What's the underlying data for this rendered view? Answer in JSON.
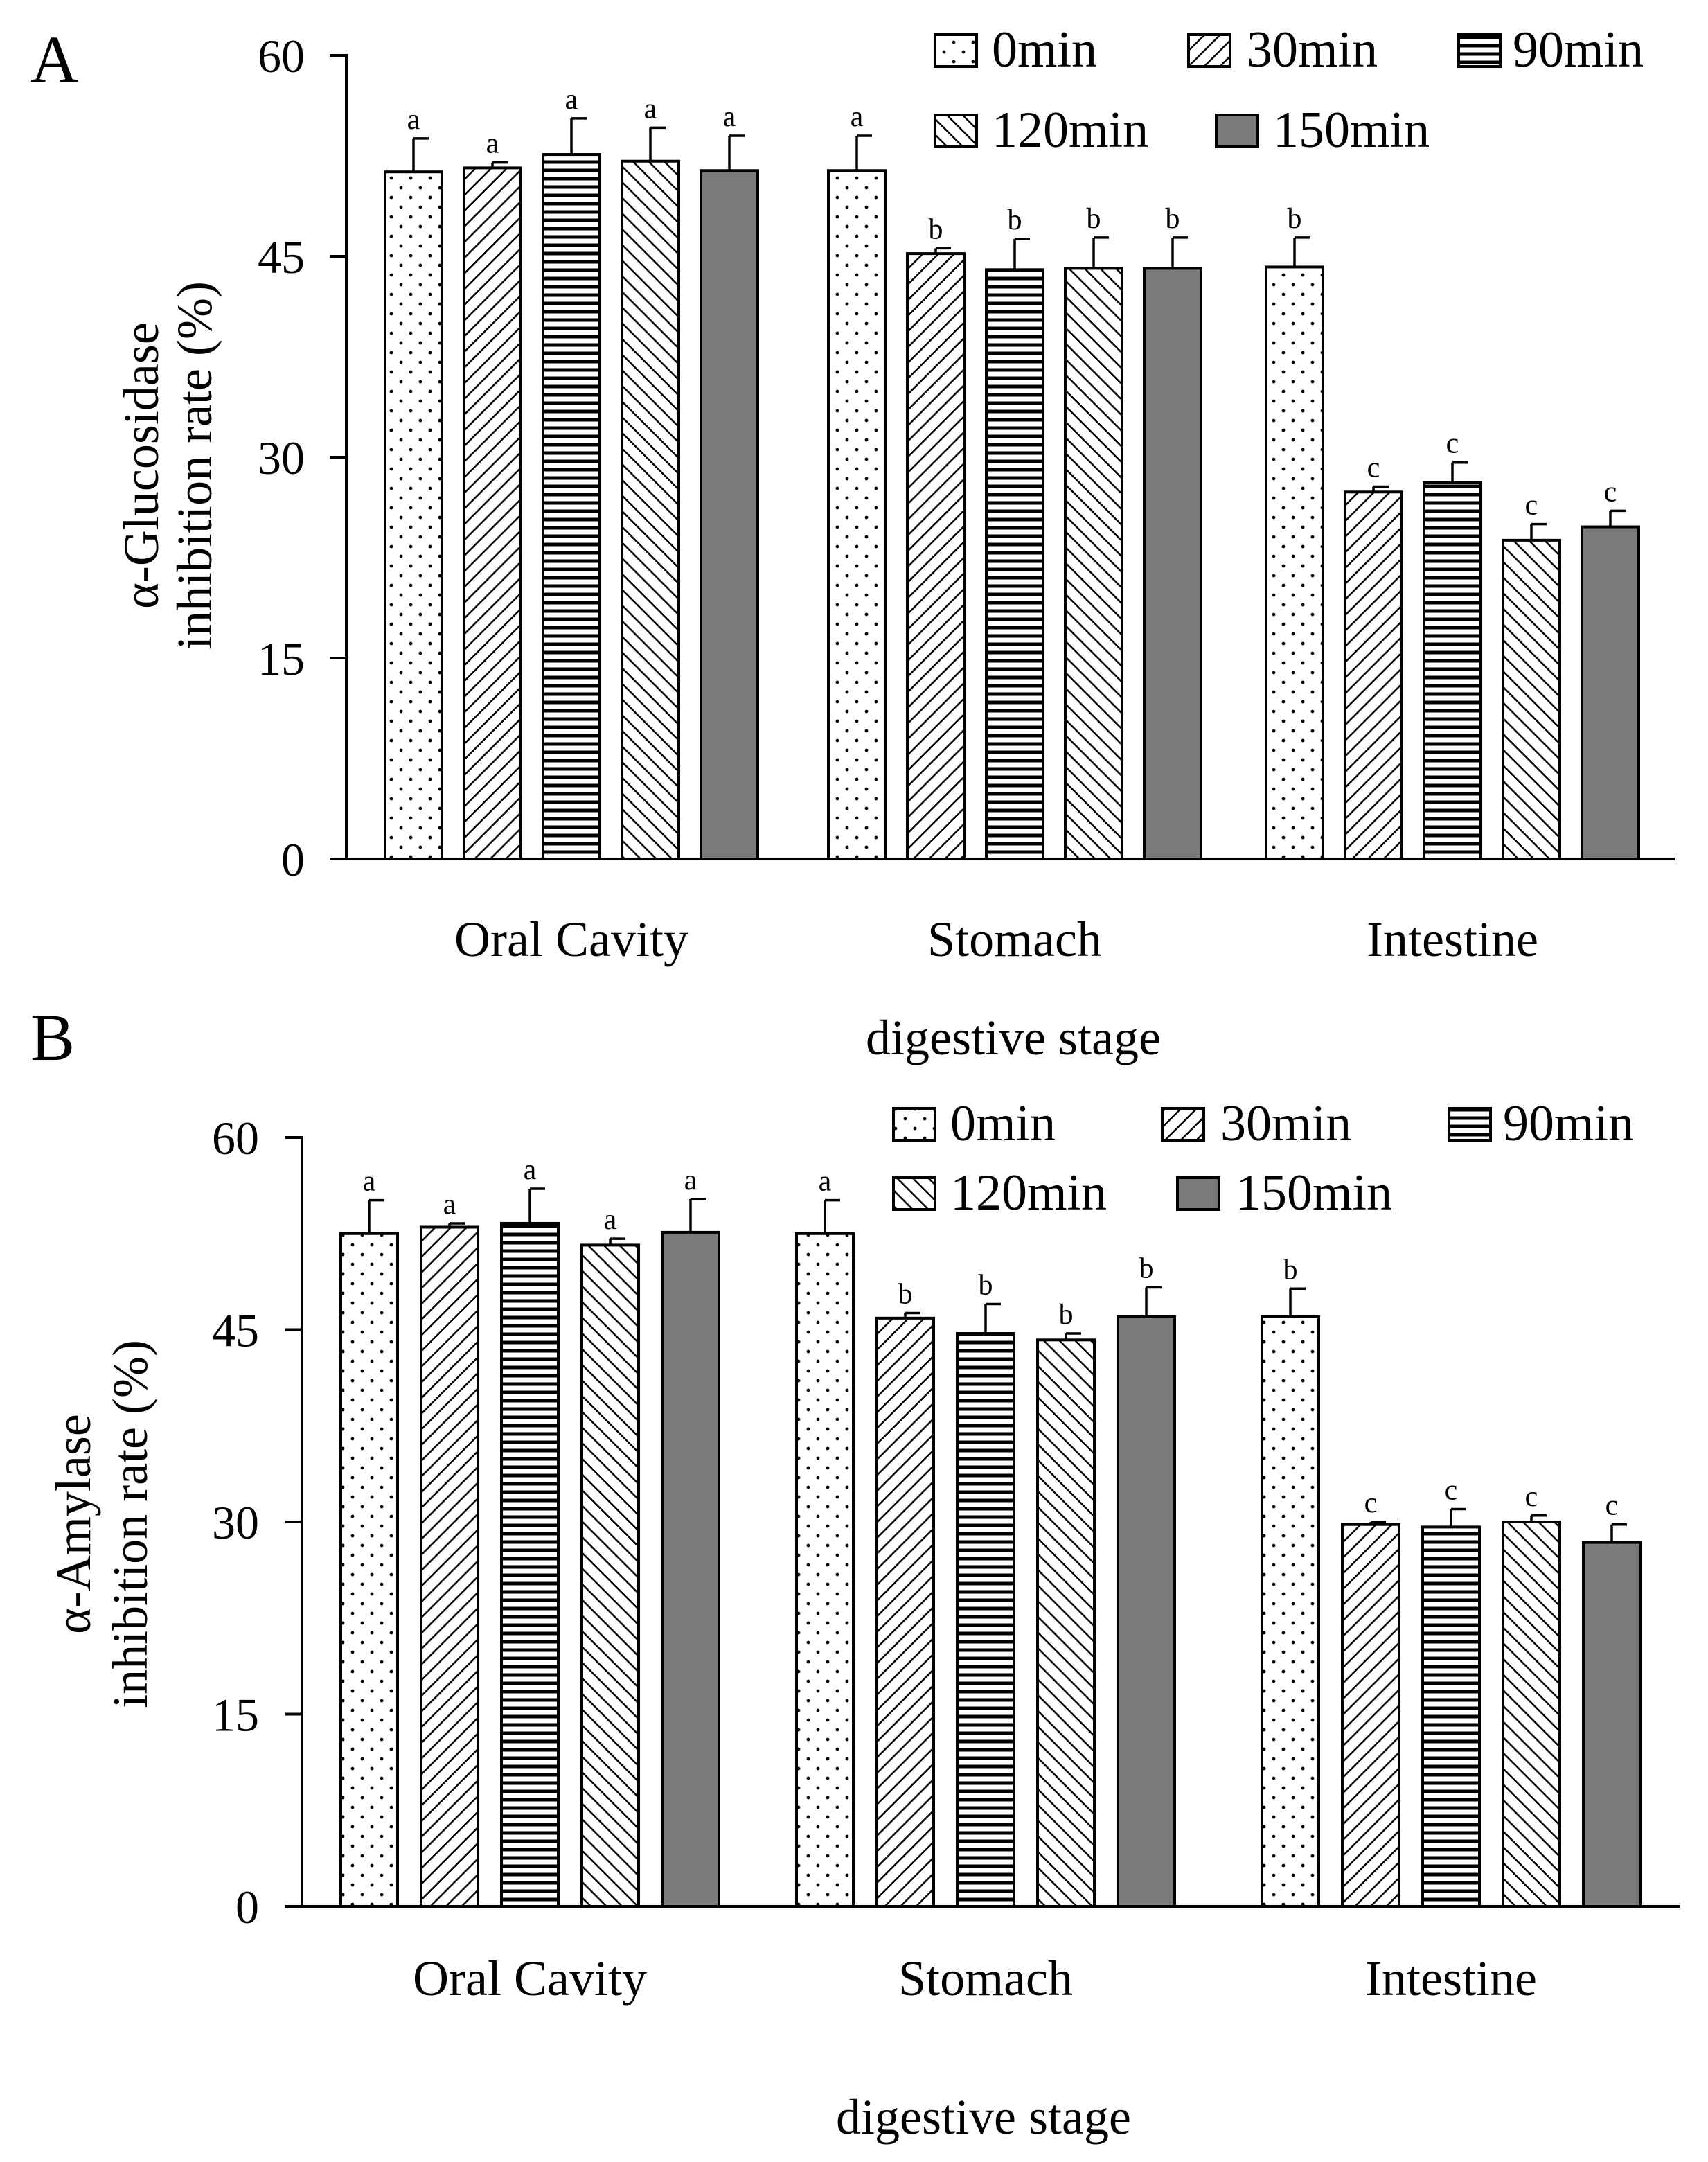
{
  "figure_labels": {
    "a": "A",
    "b": "B"
  },
  "legend": [
    {
      "key": "0min",
      "label": "0min",
      "pattern": "dots"
    },
    {
      "key": "30min",
      "label": "30min",
      "pattern": "diag-up"
    },
    {
      "key": "90min",
      "label": "90min",
      "pattern": "horizontal"
    },
    {
      "key": "120min",
      "label": "120min",
      "pattern": "diag-down"
    },
    {
      "key": "150min",
      "label": "150min",
      "pattern": "solid-gray"
    }
  ],
  "colors": {
    "solid": "#7a7a7a",
    "axis": "#000000",
    "background": "#ffffff"
  },
  "chart_data": [
    {
      "type": "bar",
      "panel": "A",
      "title": "",
      "xlabel": "digestive stage",
      "ylabel_line1": "α-Glucosidase",
      "ylabel_line2": "inhibition rate (%)",
      "ylim": [
        0,
        60
      ],
      "yticks": [
        0,
        15,
        30,
        45,
        60
      ],
      "categories": [
        "Oral Cavity",
        "Stomach",
        "Intestine"
      ],
      "series": [
        {
          "name": "0min",
          "values": [
            51.3,
            51.4,
            44.2
          ],
          "errors": [
            2.5,
            2.6,
            2.2
          ],
          "labels": [
            "a",
            "a",
            "b"
          ]
        },
        {
          "name": "30min",
          "values": [
            51.6,
            45.2,
            27.4
          ],
          "errors": [
            0.4,
            0.4,
            0.4
          ],
          "labels": [
            "a",
            "b",
            "c"
          ]
        },
        {
          "name": "90min",
          "values": [
            52.6,
            44.0,
            28.1
          ],
          "errors": [
            2.7,
            2.3,
            1.5
          ],
          "labels": [
            "a",
            "b",
            "c"
          ]
        },
        {
          "name": "120min",
          "values": [
            52.1,
            44.1,
            23.8
          ],
          "errors": [
            2.5,
            2.3,
            1.2
          ],
          "labels": [
            "a",
            "b",
            "c"
          ]
        },
        {
          "name": "150min",
          "values": [
            51.4,
            44.1,
            24.8
          ],
          "errors": [
            2.6,
            2.3,
            1.2
          ],
          "labels": [
            "a",
            "b",
            "c"
          ]
        }
      ]
    },
    {
      "type": "bar",
      "panel": "B",
      "title": "",
      "xlabel": "digestive stage",
      "ylabel_line1": "α-Amylase",
      "ylabel_line2": "inhibition rate (%)",
      "ylim": [
        0,
        60
      ],
      "yticks": [
        0,
        15,
        30,
        45,
        60
      ],
      "categories": [
        "Oral Cavity",
        "Stomach",
        "Intestine"
      ],
      "series": [
        {
          "name": "0min",
          "values": [
            52.5,
            52.5,
            46.0
          ],
          "errors": [
            2.6,
            2.6,
            2.2
          ],
          "labels": [
            "a",
            "a",
            "b"
          ]
        },
        {
          "name": "30min",
          "values": [
            53.0,
            45.9,
            29.8
          ],
          "errors": [
            0.3,
            0.4,
            0.2
          ],
          "labels": [
            "a",
            "b",
            "c"
          ]
        },
        {
          "name": "90min",
          "values": [
            53.3,
            44.7,
            29.6
          ],
          "errors": [
            2.7,
            2.3,
            1.4
          ],
          "labels": [
            "a",
            "b",
            "c"
          ]
        },
        {
          "name": "120min",
          "values": [
            51.6,
            44.2,
            30.0
          ],
          "errors": [
            0.5,
            0.5,
            0.5
          ],
          "labels": [
            "a",
            "b",
            "c"
          ]
        },
        {
          "name": "150min",
          "values": [
            52.6,
            46.0,
            28.4
          ],
          "errors": [
            2.6,
            2.3,
            1.4
          ],
          "labels": [
            "a",
            "b",
            "c"
          ]
        }
      ]
    }
  ]
}
